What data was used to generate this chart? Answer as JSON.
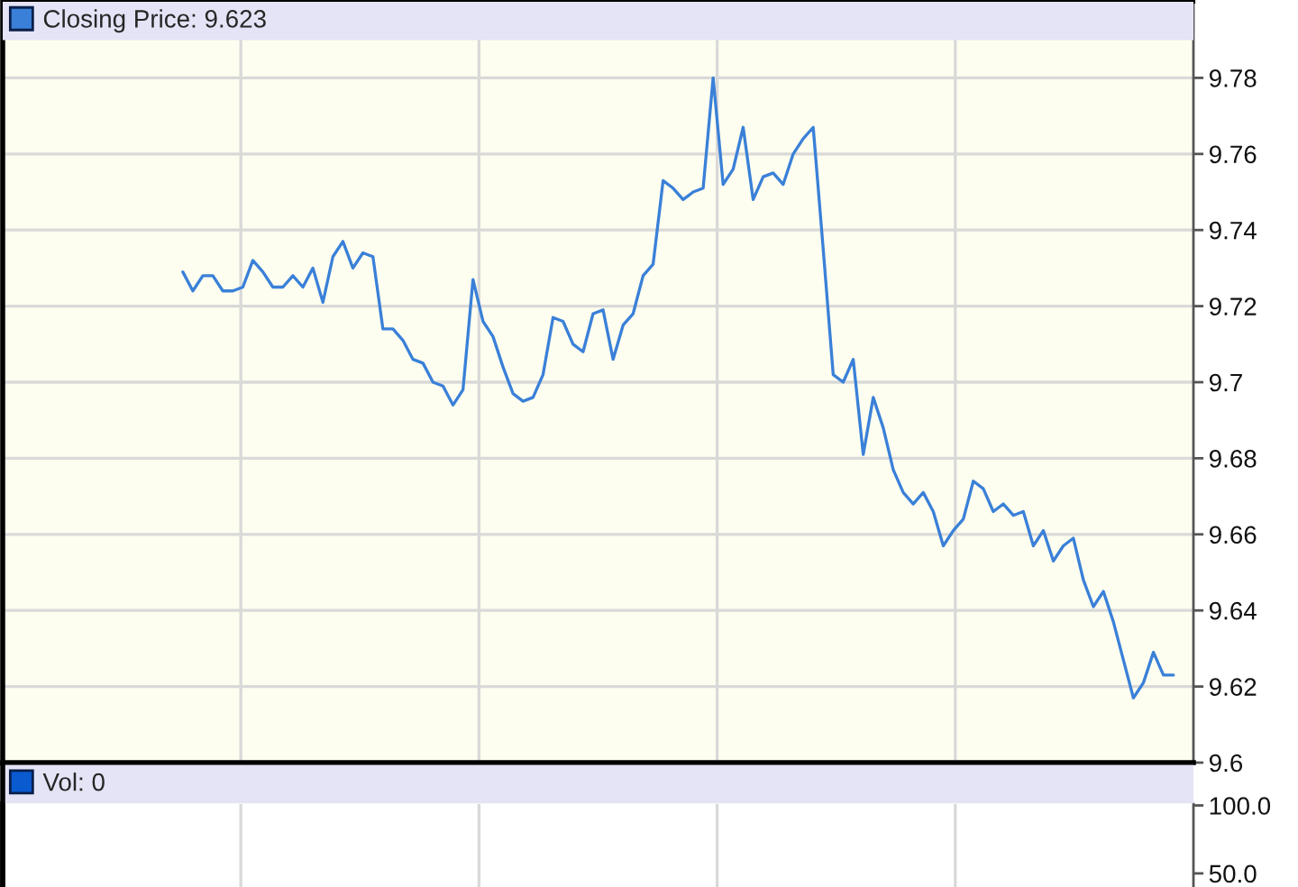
{
  "chart_data": [
    {
      "type": "line",
      "categories": [
        null,
        null,
        null,
        null,
        null,
        null,
        null,
        null,
        null,
        null,
        null,
        null,
        null,
        null,
        null,
        null,
        null,
        null,
        null,
        null,
        null,
        null,
        null,
        null,
        null,
        null,
        null,
        null,
        null,
        null,
        null,
        null,
        null,
        null,
        null,
        null,
        null,
        null,
        null,
        null,
        null,
        null,
        null,
        null,
        null,
        null,
        null,
        null,
        null,
        null,
        null,
        null,
        null,
        null,
        null,
        null,
        null,
        null,
        null,
        null,
        null,
        null,
        null,
        null,
        null,
        null,
        null,
        null,
        null,
        null,
        null,
        null,
        null,
        null,
        null,
        null,
        null,
        null,
        null,
        null,
        null,
        null,
        null,
        null,
        null,
        null,
        null,
        null,
        null,
        null,
        null,
        null,
        null,
        null,
        null,
        null,
        null,
        null,
        null,
        null,
        null,
        null,
        null,
        null,
        null,
        null,
        null,
        null,
        null,
        null,
        null,
        null,
        null,
        null,
        null,
        null,
        null,
        null,
        null,
        null
      ],
      "series": [
        {
          "name": "Closing Price: 9.623",
          "color": "#3a80d8",
          "values": [
            null,
            null,
            null,
            null,
            null,
            null,
            null,
            null,
            null,
            null,
            null,
            null,
            null,
            null,
            null,
            null,
            null,
            null,
            9.729,
            9.724,
            9.728,
            9.728,
            9.724,
            9.724,
            9.725,
            9.732,
            9.729,
            9.725,
            9.725,
            9.728,
            9.725,
            9.73,
            9.721,
            9.733,
            9.737,
            9.73,
            9.734,
            9.733,
            9.714,
            9.714,
            9.711,
            9.706,
            9.705,
            9.7,
            9.699,
            9.694,
            9.698,
            9.727,
            9.716,
            9.712,
            9.704,
            9.697,
            9.695,
            9.696,
            9.702,
            9.717,
            9.716,
            9.71,
            9.708,
            9.718,
            9.719,
            9.706,
            9.715,
            9.718,
            9.728,
            9.731,
            9.753,
            9.751,
            9.748,
            9.75,
            9.751,
            9.78,
            9.752,
            9.756,
            9.767,
            9.748,
            9.754,
            9.755,
            9.752,
            9.76,
            9.764,
            9.767,
            9.735,
            9.702,
            9.7,
            9.706,
            9.681,
            9.696,
            9.688,
            9.677,
            9.671,
            9.668,
            9.671,
            9.666,
            9.657,
            9.661,
            9.664,
            9.674,
            9.672,
            9.666,
            9.668,
            9.665,
            9.666,
            9.657,
            9.661,
            9.653,
            9.657,
            9.659,
            9.648,
            9.641,
            9.645,
            9.637,
            9.627,
            9.617,
            9.621,
            9.629,
            9.623,
            9.623,
            null,
            null
          ]
        }
      ],
      "ylim": [
        9.6,
        9.8
      ],
      "yticks": [
        9.6,
        9.62,
        9.64,
        9.66,
        9.68,
        9.7,
        9.72,
        9.74,
        9.76,
        9.78
      ],
      "grid": true,
      "legend": "top left",
      "tick_labels": "y"
    },
    {
      "type": "bar",
      "categories": [
        null,
        null,
        null,
        null,
        null,
        null,
        null,
        null,
        null,
        null,
        null,
        null,
        null,
        null,
        null,
        null,
        null,
        null,
        null,
        null,
        null,
        null,
        null,
        null,
        null,
        null,
        null,
        null,
        null,
        null,
        null,
        null,
        null,
        null,
        null,
        null,
        null,
        null,
        null,
        null,
        null,
        null,
        null,
        null,
        null,
        null,
        null,
        null,
        null,
        null,
        null,
        null,
        null,
        null,
        null,
        null,
        null,
        null,
        null,
        null,
        null,
        null,
        null,
        null,
        null,
        null,
        null,
        null,
        null,
        null,
        null,
        null,
        null,
        null,
        null,
        null,
        null,
        null,
        null,
        null,
        null,
        null,
        null,
        null,
        null,
        null,
        null,
        null,
        null,
        null,
        null,
        null,
        null,
        null,
        null,
        null,
        null,
        null,
        null,
        null,
        null,
        null,
        null,
        null,
        null,
        null,
        null,
        null,
        null,
        null,
        null,
        null,
        null,
        null,
        null,
        null,
        null,
        null,
        null,
        null
      ],
      "series": [
        {
          "name": "Vol: 0",
          "color": "#0a5ad0",
          "values": [
            null,
            null,
            null,
            null,
            null,
            null,
            null,
            null,
            null,
            null,
            null,
            null,
            null,
            null,
            null,
            null,
            null,
            null,
            null,
            null,
            null,
            null,
            null,
            null,
            null,
            null,
            null,
            null,
            null,
            null,
            null,
            null,
            null,
            null,
            null,
            null,
            null,
            null,
            null,
            null,
            null,
            null,
            null,
            null,
            null,
            null,
            null,
            null,
            null,
            null,
            null,
            null,
            null,
            null,
            null,
            null,
            null,
            null,
            null,
            null,
            null,
            null,
            null,
            null,
            null,
            null,
            null,
            null,
            null,
            null,
            null,
            null,
            null,
            null,
            null,
            null,
            null,
            null,
            null,
            null,
            null,
            null,
            null,
            null,
            null,
            null,
            null,
            null,
            null,
            null,
            null,
            null,
            null,
            null,
            null,
            null,
            null,
            null,
            null,
            null,
            null,
            null,
            null,
            null,
            null,
            null,
            null,
            null,
            null,
            null,
            null,
            null,
            null,
            null,
            null,
            null,
            null,
            null,
            null,
            null
          ]
        }
      ],
      "ylim": [
        40,
        101
      ],
      "yticks": [
        {
          "value": 50,
          "label": "50.0"
        },
        {
          "value": 100,
          "label": "100.0"
        }
      ],
      "grid": "x",
      "legend": "top left",
      "tick_labels": "y"
    }
  ]
}
